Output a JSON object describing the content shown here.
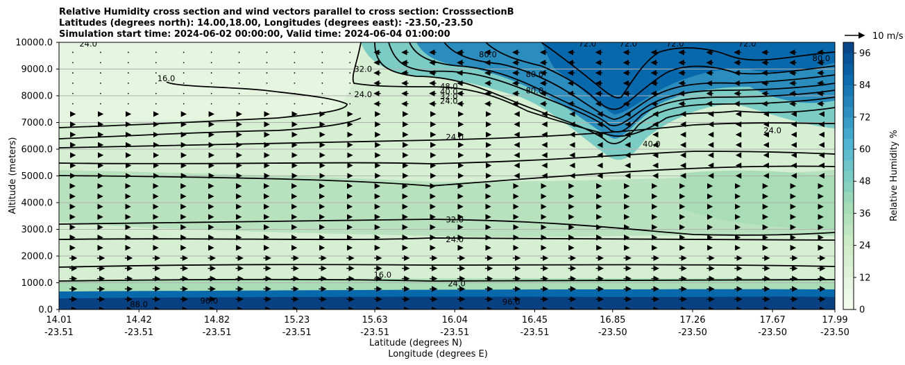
{
  "chart_data": {
    "type": "contour",
    "title_lines": [
      "Relative Humidity cross section and wind vectors parallel to cross section: CrosssectionB",
      "Latitudes (degrees north): 14.00,18.00, Longitudes (degrees east): -23.50,-23.50",
      "Simulation start time: 2024-06-02 00:00:00, Valid time: 2024-06-04 01:00:00"
    ],
    "ylabel": "Altitude (meters)",
    "xlabel_lat": "Latitude (degrees N)",
    "xlabel_lon": "Longitude (degrees E)",
    "x_ticks": [
      {
        "lat": "14.01",
        "lon": "-23.51"
      },
      {
        "lat": "14.42",
        "lon": "-23.51"
      },
      {
        "lat": "14.82",
        "lon": "-23.51"
      },
      {
        "lat": "15.23",
        "lon": "-23.51"
      },
      {
        "lat": "15.63",
        "lon": "-23.51"
      },
      {
        "lat": "16.04",
        "lon": "-23.51"
      },
      {
        "lat": "16.45",
        "lon": "-23.51"
      },
      {
        "lat": "16.85",
        "lon": "-23.50"
      },
      {
        "lat": "17.26",
        "lon": "-23.50"
      },
      {
        "lat": "17.67",
        "lon": "-23.50"
      },
      {
        "lat": "17.99",
        "lon": "-23.50"
      }
    ],
    "x_range": [
      14.01,
      17.99
    ],
    "y_ticks": [
      "0.0",
      "1000.0",
      "2000.0",
      "3000.0",
      "4000.0",
      "5000.0",
      "6000.0",
      "7000.0",
      "8000.0",
      "9000.0",
      "10000.0"
    ],
    "ylim": [
      0,
      10000
    ],
    "grid": "horizontal",
    "colorbar": {
      "label": "Relative Humidity %",
      "ticks": [
        "0",
        "12",
        "24",
        "36",
        "48",
        "60",
        "72",
        "84",
        "96"
      ],
      "range": [
        0,
        100
      ],
      "levels": 25,
      "colormap": "GnBu",
      "colors": [
        "#f7fcf0",
        "#e0f3db",
        "#ccebc5",
        "#a8ddb5",
        "#7bccc4",
        "#4eb3d3",
        "#2b8cbe",
        "#0868ac",
        "#084081"
      ]
    },
    "quiver_key": "10 m/s",
    "contour_labels": [
      {
        "text": "24.0",
        "lat": 14.16,
        "alt": 9950
      },
      {
        "text": "16.0",
        "lat": 14.56,
        "alt": 8650
      },
      {
        "text": "32.0",
        "lat": 15.57,
        "alt": 9000
      },
      {
        "text": "24.0",
        "lat": 15.57,
        "alt": 8050
      },
      {
        "text": "80.0",
        "lat": 16.21,
        "alt": 9550
      },
      {
        "text": "80.0",
        "lat": 16.45,
        "alt": 8800
      },
      {
        "text": "80.0",
        "lat": 16.45,
        "alt": 8200
      },
      {
        "text": "72.0",
        "lat": 16.72,
        "alt": 9950
      },
      {
        "text": "72.0",
        "lat": 16.93,
        "alt": 9950
      },
      {
        "text": "72.0",
        "lat": 17.17,
        "alt": 9950
      },
      {
        "text": "72.0",
        "lat": 17.54,
        "alt": 9950
      },
      {
        "text": "80.0",
        "lat": 17.92,
        "alt": 9400
      },
      {
        "text": "48.0",
        "lat": 16.01,
        "alt": 8350
      },
      {
        "text": "40.0",
        "lat": 16.01,
        "alt": 8150
      },
      {
        "text": "32.0",
        "lat": 16.01,
        "alt": 7980
      },
      {
        "text": "24.0",
        "lat": 16.01,
        "alt": 7800
      },
      {
        "text": "40.0",
        "lat": 17.05,
        "alt": 6200
      },
      {
        "text": "24.0",
        "lat": 17.67,
        "alt": 6700
      },
      {
        "text": "24.0",
        "lat": 16.04,
        "alt": 6450
      },
      {
        "text": "32.0",
        "lat": 16.04,
        "alt": 3370
      },
      {
        "text": "24.0",
        "lat": 16.04,
        "alt": 2620
      },
      {
        "text": "16.0",
        "lat": 15.67,
        "alt": 1300
      },
      {
        "text": "24.0",
        "lat": 16.05,
        "alt": 980
      },
      {
        "text": "88.0",
        "lat": 14.42,
        "alt": 200
      },
      {
        "text": "96.0",
        "lat": 14.78,
        "alt": 330
      },
      {
        "text": "96.0",
        "lat": 16.33,
        "alt": 280
      }
    ]
  }
}
